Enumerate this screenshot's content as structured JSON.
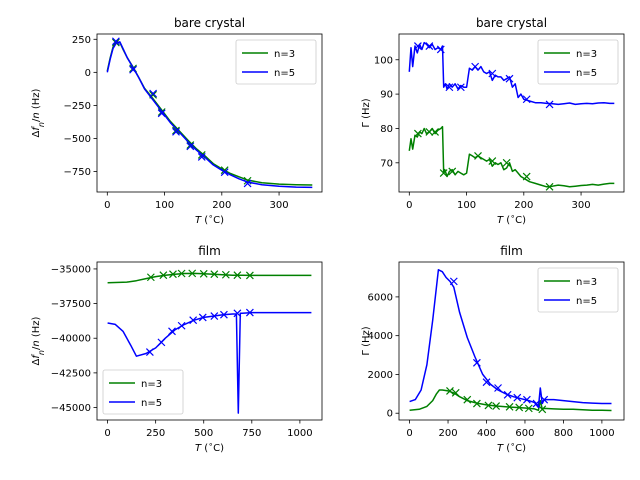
{
  "figure": {
    "background": "#ffffff"
  },
  "chart_data": [
    {
      "type": "line",
      "title": "bare crystal",
      "xlabel": "T (°C)",
      "ylabel": "Δf_n/n (Hz)",
      "xlim": [
        -18,
        375
      ],
      "ylim": [
        -905,
        290
      ],
      "xticks": [
        0,
        100,
        200,
        300
      ],
      "xtick_labels": [
        "0",
        "100",
        "200",
        "300"
      ],
      "yticks": [
        250,
        0,
        -250,
        -500,
        -750
      ],
      "ytick_labels": [
        "250",
        "0",
        "−250",
        "−500",
        "−750"
      ],
      "legend": {
        "position": "upper right",
        "entries": [
          "n=3",
          "n=5"
        ]
      },
      "series": [
        {
          "name": "n=3",
          "color": "#008000",
          "x": [
            0,
            5,
            10,
            16,
            22,
            28,
            35,
            45,
            55,
            65,
            80,
            95,
            110,
            125,
            140,
            155,
            170,
            185,
            200,
            215,
            230,
            245,
            270,
            300,
            330,
            358
          ],
          "y": [
            10,
            110,
            190,
            230,
            225,
            170,
            110,
            40,
            -40,
            -120,
            -200,
            -285,
            -370,
            -440,
            -510,
            -575,
            -630,
            -690,
            -730,
            -765,
            -790,
            -815,
            -835,
            -845,
            -850,
            -852
          ],
          "markers": {
            "x": [
              15,
              45,
              80,
              95,
              120,
              145,
              165,
              205,
              245
            ],
            "y": [
              225,
              30,
              -170,
              -300,
              -440,
              -550,
              -625,
              -740,
              -820
            ]
          }
        },
        {
          "name": "n=5",
          "color": "#0000ff",
          "x": [
            0,
            5,
            10,
            16,
            22,
            28,
            35,
            45,
            55,
            65,
            80,
            95,
            110,
            125,
            140,
            155,
            170,
            185,
            200,
            215,
            230,
            245,
            270,
            300,
            330,
            358
          ],
          "y": [
            0,
            100,
            180,
            225,
            230,
            175,
            110,
            35,
            -40,
            -125,
            -210,
            -295,
            -380,
            -450,
            -520,
            -585,
            -640,
            -700,
            -740,
            -775,
            -805,
            -830,
            -850,
            -862,
            -868,
            -870
          ],
          "markers": {
            "x": [
              15,
              45,
              80,
              95,
              120,
              145,
              165,
              205,
              245
            ],
            "y": [
              235,
              20,
              -160,
              -310,
              -450,
              -560,
              -640,
              -755,
              -840
            ]
          }
        }
      ]
    },
    {
      "type": "line",
      "title": "bare crystal",
      "xlabel": "T (°C)",
      "ylabel": "Γ (Hz)",
      "xlim": [
        -18,
        375
      ],
      "ylim": [
        61.5,
        107.5
      ],
      "xticks": [
        0,
        100,
        200,
        300
      ],
      "xtick_labels": [
        "0",
        "100",
        "200",
        "300"
      ],
      "yticks": [
        70,
        80,
        90,
        100
      ],
      "ytick_labels": [
        "70",
        "80",
        "90",
        "100"
      ],
      "legend": {
        "position": "upper right",
        "entries": [
          "n=3",
          "n=5"
        ]
      },
      "series": [
        {
          "name": "n=3",
          "color": "#008000",
          "x": [
            0,
            3,
            6,
            10,
            14,
            18,
            22,
            26,
            30,
            35,
            40,
            45,
            50,
            55,
            58,
            60,
            62,
            66,
            70,
            75,
            80,
            85,
            90,
            95,
            100,
            105,
            110,
            115,
            120,
            125,
            130,
            135,
            140,
            145,
            150,
            155,
            160,
            165,
            170,
            175,
            180,
            185,
            190,
            195,
            200,
            210,
            220,
            230,
            240,
            250,
            260,
            270,
            280,
            290,
            300,
            310,
            320,
            330,
            340,
            350,
            358
          ],
          "y": [
            73.5,
            77,
            74,
            78,
            77.5,
            79,
            78.5,
            80,
            78.5,
            79,
            80,
            78.5,
            79.5,
            80,
            80.5,
            67,
            68,
            66,
            67.5,
            68,
            66.5,
            67.5,
            67,
            66.5,
            67,
            72.5,
            72,
            71.5,
            72,
            71.5,
            71,
            70.5,
            71,
            69,
            70,
            69.5,
            70,
            68,
            68.5,
            70,
            67.5,
            68,
            67,
            66,
            65.5,
            64.5,
            64,
            63.5,
            63,
            63.2,
            63.5,
            63.3,
            63,
            63.2,
            63.4,
            63.5,
            63.7,
            63.5,
            63.8,
            64,
            64
          ],
          "markers": {
            "x": [
              15,
              35,
              45,
              60,
              75,
              120,
              145,
              170,
              205,
              245
            ],
            "y": [
              78.5,
              79,
              79,
              67,
              67.5,
              72,
              70.5,
              70,
              66,
              63
            ]
          }
        },
        {
          "name": "n=5",
          "color": "#0000ff",
          "x": [
            0,
            3,
            6,
            10,
            14,
            18,
            22,
            26,
            30,
            35,
            40,
            45,
            50,
            55,
            58,
            60,
            63,
            66,
            70,
            75,
            80,
            85,
            90,
            95,
            100,
            105,
            110,
            115,
            120,
            125,
            130,
            135,
            140,
            145,
            150,
            155,
            160,
            165,
            170,
            175,
            180,
            185,
            190,
            195,
            200,
            210,
            220,
            230,
            240,
            250,
            260,
            270,
            280,
            290,
            300,
            310,
            320,
            330,
            340,
            350,
            358
          ],
          "y": [
            96.5,
            103.5,
            98,
            104,
            102,
            104.5,
            103,
            105,
            104.5,
            103.5,
            104.5,
            103,
            103.5,
            103,
            104,
            92,
            93,
            91.5,
            93,
            92,
            93,
            91.5,
            92.5,
            92,
            92,
            97.5,
            97,
            98,
            97,
            98,
            96.5,
            96,
            96.5,
            94,
            95.5,
            95,
            95,
            94,
            94.5,
            95,
            92,
            93,
            89,
            90,
            88.5,
            88,
            87.5,
            87.5,
            87.3,
            87.2,
            87,
            87.2,
            87.4,
            87,
            87.2,
            87.3,
            87.2,
            87.4,
            87.5,
            87.3,
            87.3
          ],
          "markers": {
            "x": [
              15,
              35,
              55,
              70,
              90,
              115,
              145,
              175,
              205,
              245
            ],
            "y": [
              104,
              104,
              103,
              92,
              92,
              98,
              96,
              94.5,
              88.5,
              87
            ]
          }
        }
      ]
    },
    {
      "type": "line",
      "title": "film",
      "xlabel": "T (°C)",
      "ylabel": "Δf_n/n (Hz)",
      "xlim": [
        -55,
        1115
      ],
      "ylim": [
        -45900,
        -34500
      ],
      "xticks": [
        0,
        250,
        500,
        750,
        1000
      ],
      "xtick_labels": [
        "0",
        "250",
        "500",
        "750",
        "1000"
      ],
      "yticks": [
        -35000,
        -37500,
        -40000,
        -42500,
        -45000
      ],
      "ytick_labels": [
        "−35000",
        "−37500",
        "−40000",
        "−42500",
        "−45000"
      ],
      "legend": {
        "position": "lower left",
        "entries": [
          "n=3",
          "n=5"
        ]
      },
      "series": [
        {
          "name": "n=3",
          "color": "#008000",
          "x": [
            0,
            100,
            150,
            200,
            250,
            300,
            350,
            400,
            450,
            500,
            550,
            600,
            650,
            700,
            750,
            800,
            900,
            1000,
            1060
          ],
          "y": [
            -36000,
            -35950,
            -35850,
            -35700,
            -35550,
            -35450,
            -35380,
            -35330,
            -35320,
            -35350,
            -35380,
            -35420,
            -35450,
            -35460,
            -35470,
            -35470,
            -35470,
            -35470,
            -35470
          ],
          "markers": {
            "x": [
              225,
              290,
              340,
              385,
              440,
              500,
              555,
              615,
              675,
              740
            ],
            "y": [
              -35600,
              -35450,
              -35380,
              -35330,
              -35320,
              -35350,
              -35380,
              -35420,
              -35450,
              -35470
            ]
          }
        },
        {
          "name": "n=5",
          "color": "#0000ff",
          "x": [
            0,
            40,
            80,
            120,
            150,
            200,
            250,
            300,
            350,
            400,
            450,
            500,
            550,
            600,
            650,
            670,
            680,
            690,
            700,
            750,
            800,
            900,
            1000,
            1060
          ],
          "y": [
            -38900,
            -39000,
            -39500,
            -40500,
            -41300,
            -41100,
            -40700,
            -40000,
            -39400,
            -39000,
            -38700,
            -38500,
            -38400,
            -38300,
            -38250,
            -38250,
            -45400,
            -38200,
            -38200,
            -38150,
            -38150,
            -38150,
            -38150,
            -38150
          ],
          "markers": {
            "x": [
              220,
              280,
              335,
              385,
              445,
              495,
              555,
              605,
              675,
              740
            ],
            "y": [
              -41000,
              -40300,
              -39500,
              -39100,
              -38700,
              -38500,
              -38400,
              -38300,
              -38200,
              -38150
            ]
          }
        }
      ]
    },
    {
      "type": "line",
      "title": "film",
      "xlabel": "T (°C)",
      "ylabel": "Γ (Hz)",
      "xlim": [
        -55,
        1115
      ],
      "ylim": [
        -350,
        7800
      ],
      "xticks": [
        0,
        200,
        400,
        600,
        800,
        1000
      ],
      "xtick_labels": [
        "0",
        "200",
        "400",
        "600",
        "800",
        "1000"
      ],
      "yticks": [
        0,
        2000,
        4000,
        6000
      ],
      "ytick_labels": [
        "0",
        "2000",
        "4000",
        "6000"
      ],
      "legend": {
        "position": "upper right",
        "entries": [
          "n=3",
          "n=5"
        ]
      },
      "series": [
        {
          "name": "n=3",
          "color": "#008000",
          "x": [
            0,
            50,
            90,
            120,
            140,
            155,
            170,
            200,
            230,
            260,
            300,
            350,
            400,
            450,
            500,
            550,
            600,
            650,
            670,
            680,
            690,
            700,
            750,
            800,
            850,
            900,
            950,
            1000,
            1050
          ],
          "y": [
            150,
            200,
            350,
            650,
            1000,
            1200,
            1200,
            1150,
            1050,
            850,
            650,
            520,
            430,
            370,
            330,
            300,
            270,
            220,
            150,
            650,
            200,
            250,
            220,
            200,
            200,
            180,
            150,
            150,
            140
          ],
          "markers": {
            "x": [
              210,
              240,
              300,
              350,
              410,
              450,
              520,
              570,
              620,
              690
            ],
            "y": [
              1150,
              1050,
              700,
              500,
              400,
              370,
              330,
              300,
              250,
              200
            ]
          }
        },
        {
          "name": "n=5",
          "color": "#0000ff",
          "x": [
            0,
            30,
            60,
            90,
            120,
            150,
            170,
            190,
            210,
            230,
            260,
            300,
            340,
            380,
            420,
            460,
            500,
            540,
            580,
            620,
            650,
            670,
            680,
            690,
            700,
            750,
            800,
            850,
            900,
            950,
            1000,
            1050
          ],
          "y": [
            600,
            700,
            1200,
            2500,
            4800,
            7400,
            7300,
            7000,
            6800,
            6500,
            5200,
            3900,
            2900,
            2000,
            1500,
            1200,
            1000,
            850,
            750,
            650,
            550,
            300,
            1300,
            500,
            700,
            700,
            650,
            600,
            550,
            520,
            500,
            500
          ],
          "markers": {
            "x": [
              230,
              350,
              400,
              460,
              510,
              560,
              610,
              660,
              700
            ],
            "y": [
              6800,
              2600,
              1600,
              1300,
              950,
              800,
              700,
              500,
              700
            ]
          }
        }
      ]
    }
  ]
}
